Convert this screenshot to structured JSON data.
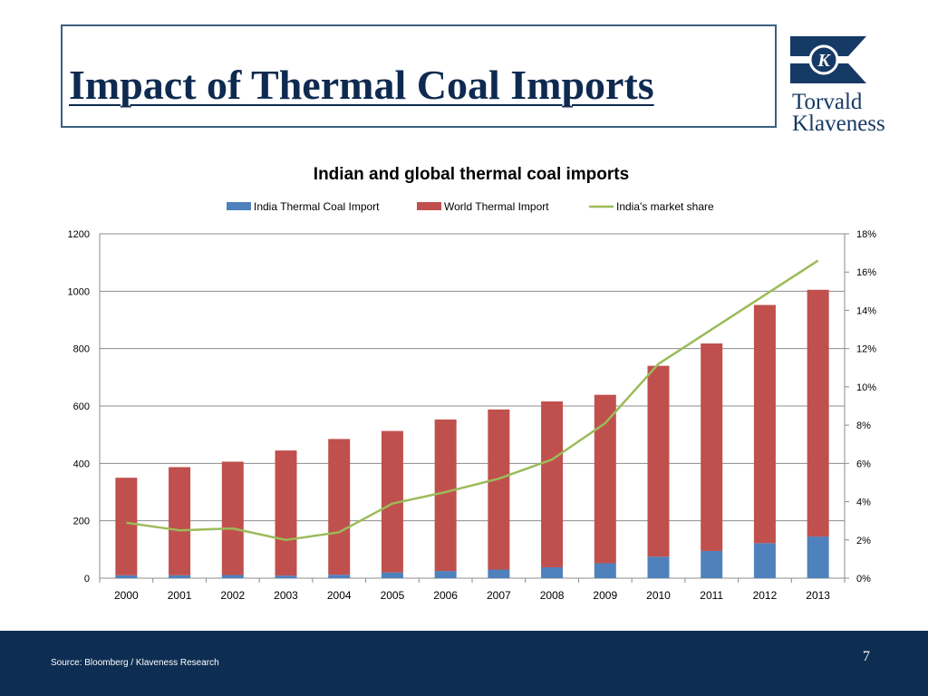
{
  "slide": {
    "title": "Impact of Thermal Coal Imports",
    "logo_line1": "Torvald",
    "logo_line2": "Klaveness",
    "source": "Source: Bloomberg / Klaveness Research",
    "page_number": "7"
  },
  "colors": {
    "title": "#0e2a50",
    "india_bar": "#4f81bd",
    "world_bar": "#c0504d",
    "share_line": "#9bbb59",
    "footer": "#0d2e52",
    "logo": "#163a66"
  },
  "icons": {
    "logo": "klaveness-k-flag-icon"
  },
  "chart_data": {
    "type": "bar",
    "stacked": true,
    "title": "Indian and global thermal coal imports",
    "categories": [
      "2000",
      "2001",
      "2002",
      "2003",
      "2004",
      "2005",
      "2006",
      "2007",
      "2008",
      "2009",
      "2010",
      "2011",
      "2012",
      "2013"
    ],
    "series": [
      {
        "name": "India Thermal Coal Import",
        "type": "bar",
        "values": [
          10,
          10,
          11,
          9,
          12,
          20,
          25,
          30,
          38,
          52,
          75,
          95,
          122,
          145
        ]
      },
      {
        "name": "World Thermal Import",
        "type": "bar",
        "values": [
          340,
          377,
          395,
          436,
          473,
          493,
          528,
          558,
          578,
          587,
          665,
          723,
          830,
          860
        ]
      },
      {
        "name": "India's market share",
        "type": "line",
        "axis": "right",
        "values": [
          2.9,
          2.5,
          2.6,
          2.0,
          2.4,
          3.9,
          4.5,
          5.2,
          6.2,
          8.1,
          11.2,
          13.0,
          14.8,
          16.6
        ]
      }
    ],
    "y_left": {
      "ylim": [
        0,
        1200
      ],
      "ticks": [
        "0",
        "200",
        "400",
        "600",
        "800",
        "1000",
        "1200"
      ]
    },
    "y_right": {
      "ylim": [
        0,
        18
      ],
      "ticks": [
        "0%",
        "2%",
        "4%",
        "6%",
        "8%",
        "10%",
        "12%",
        "14%",
        "16%",
        "18%"
      ]
    },
    "grid": true,
    "legend": "top"
  }
}
